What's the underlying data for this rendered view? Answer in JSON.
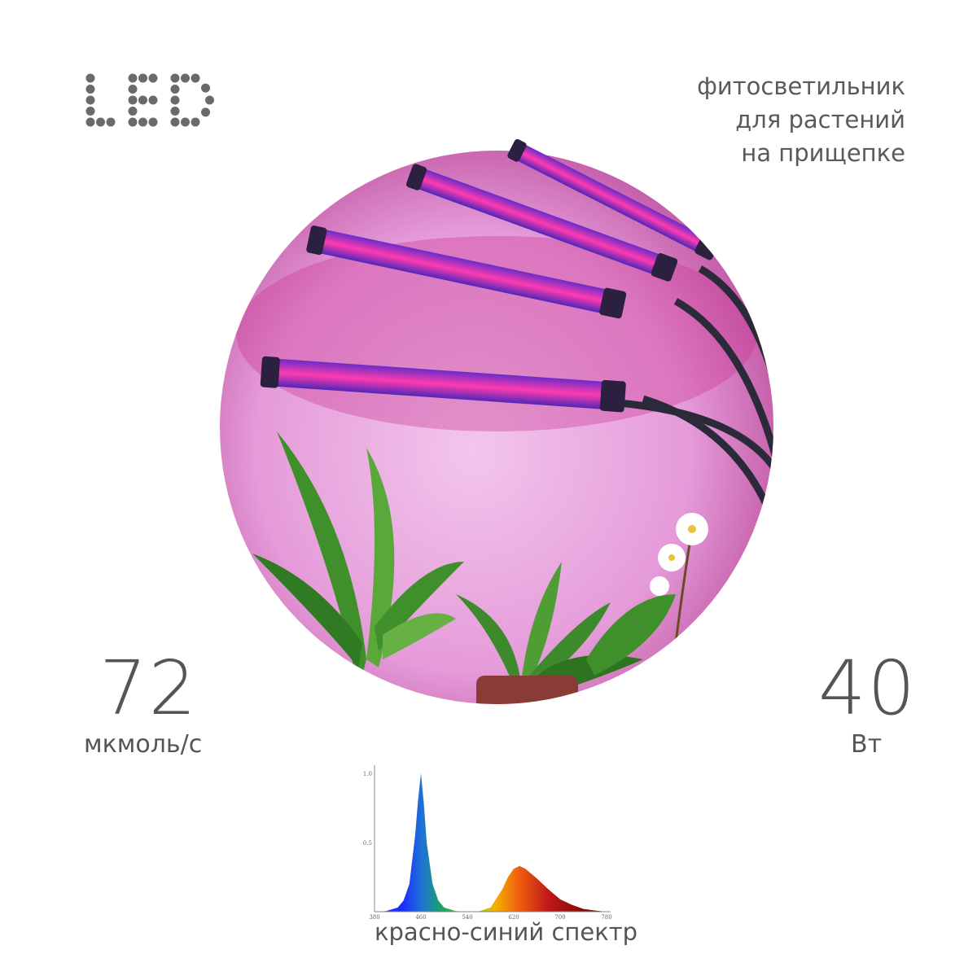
{
  "logo": {
    "text": "LED"
  },
  "product": {
    "description_lines": [
      "фитосветильник",
      "для растений",
      "на прищепке"
    ]
  },
  "specs": {
    "flux": {
      "value": "72",
      "unit": "мкмоль/с"
    },
    "power": {
      "value": "40",
      "unit": "Вт"
    }
  },
  "colors": {
    "text": "#555555",
    "light_pink": "#e9a6de",
    "lamp_magenta": "#e0208f",
    "lamp_blue": "#4a2ad0"
  },
  "chart_caption": "красно-синий спектр",
  "chart_data": {
    "type": "area",
    "x_ticks": [
      "380",
      "460",
      "540",
      "620",
      "700",
      "780"
    ],
    "y_ticks": [
      "0.5",
      "1.0"
    ],
    "xlim": [
      380,
      780
    ],
    "ylim": [
      0,
      1.05
    ],
    "grid": false,
    "x": [
      380,
      400,
      420,
      430,
      440,
      450,
      455,
      460,
      465,
      470,
      480,
      490,
      500,
      520,
      540,
      560,
      580,
      600,
      610,
      620,
      630,
      640,
      660,
      680,
      700,
      720,
      740,
      760,
      780
    ],
    "y": [
      0,
      0.005,
      0.03,
      0.08,
      0.2,
      0.55,
      0.8,
      1.0,
      0.78,
      0.5,
      0.2,
      0.08,
      0.03,
      0.005,
      0,
      0.003,
      0.03,
      0.16,
      0.25,
      0.31,
      0.33,
      0.31,
      0.24,
      0.16,
      0.09,
      0.05,
      0.02,
      0.008,
      0
    ]
  }
}
